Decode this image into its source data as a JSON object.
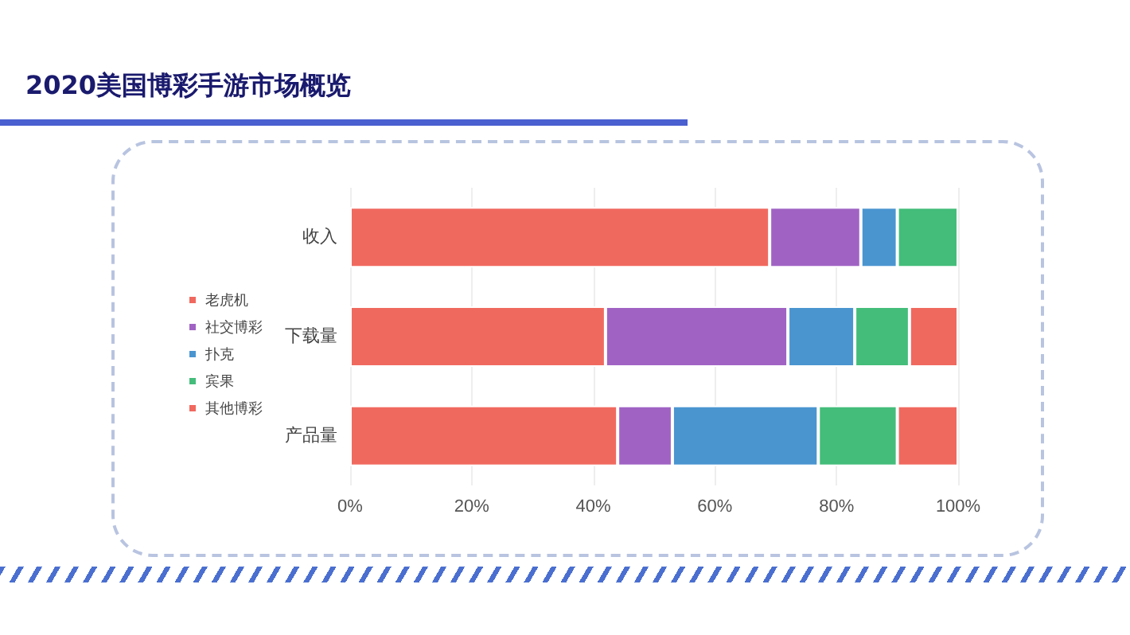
{
  "chart_data": {
    "type": "bar",
    "title": "2020美国博彩手游市场概览",
    "orientation": "horizontal",
    "stacked": true,
    "categories": [
      "收入",
      "下载量",
      "产品量"
    ],
    "series": [
      {
        "name": "老虎机",
        "color": "#f0695f",
        "values": [
          69,
          42,
          44
        ]
      },
      {
        "name": "社交博彩",
        "color": "#a063c4",
        "values": [
          15,
          30,
          9
        ]
      },
      {
        "name": "扑克",
        "color": "#4a95d0",
        "values": [
          6,
          11,
          24
        ]
      },
      {
        "name": "宾果",
        "color": "#44bd7a",
        "values": [
          10,
          9,
          13
        ]
      },
      {
        "name": "其他博彩",
        "color": "#f0695f",
        "values": [
          null,
          8,
          10
        ]
      }
    ],
    "xlim": [
      0,
      100
    ],
    "xticks": [
      {
        "value": 0,
        "label": "0%"
      },
      {
        "value": 20,
        "label": "20%"
      },
      {
        "value": 40,
        "label": "40%"
      },
      {
        "value": 60,
        "label": "60%"
      },
      {
        "value": 80,
        "label": "80%"
      },
      {
        "value": 100,
        "label": "100%"
      }
    ],
    "grid": "x",
    "legend": "left"
  }
}
